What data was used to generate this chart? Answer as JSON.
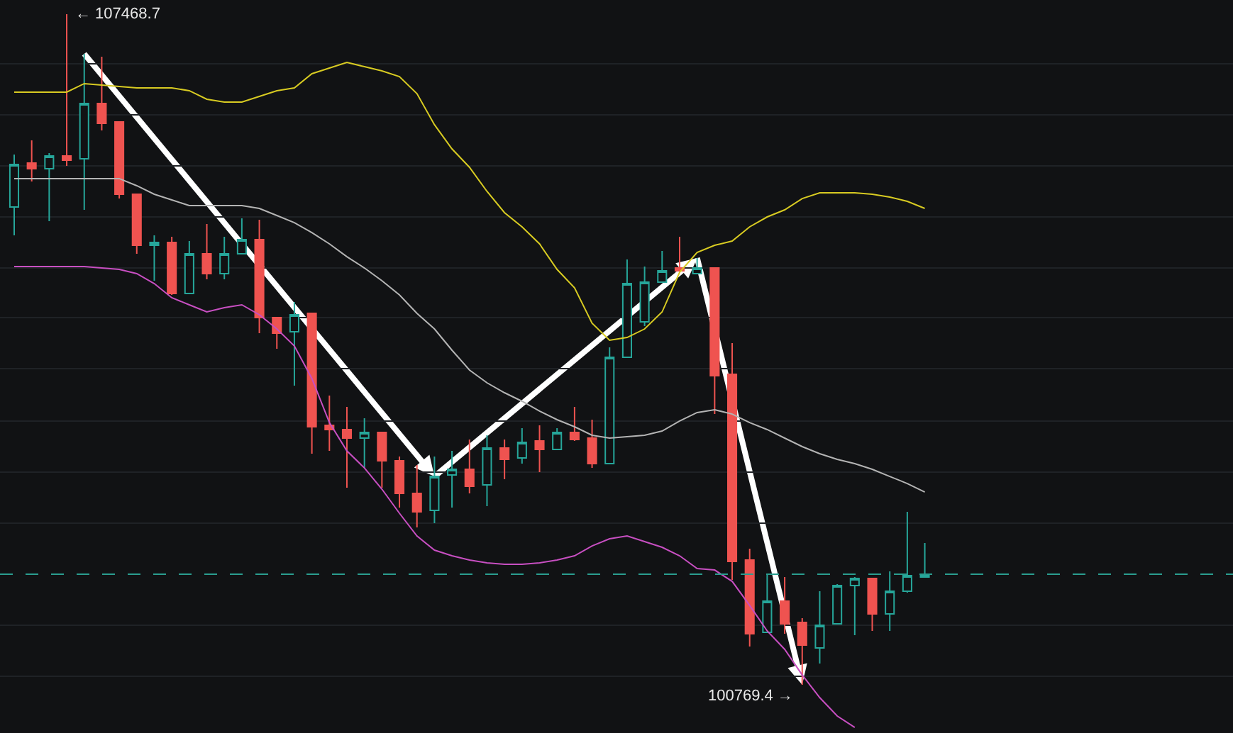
{
  "chart_data": {
    "type": "candlestick",
    "categories": [
      null,
      null,
      null,
      null,
      null,
      null,
      null,
      null,
      null,
      null,
      null,
      null,
      null,
      null,
      null,
      null,
      null,
      null,
      null,
      null,
      null,
      null,
      null,
      null,
      null,
      null,
      null,
      null,
      null,
      null,
      null,
      null,
      null,
      null,
      null,
      null,
      null,
      null,
      null,
      null,
      null,
      null,
      null,
      null,
      null,
      null,
      null,
      null,
      null,
      null,
      null,
      null,
      null
    ],
    "ohlc": [
      [
        105542,
        106066,
        105259,
        105967
      ],
      [
        105981,
        106208,
        105797,
        105925
      ],
      [
        105925,
        106081,
        105401,
        106052
      ],
      [
        106052,
        107468.7,
        105953,
        106010
      ],
      [
        106024,
        107072,
        105514,
        106576
      ],
      [
        106576,
        107044,
        106307,
        106378
      ],
      [
        106392,
        106392,
        105627,
        105670
      ],
      [
        105670,
        105670,
        105075,
        105160
      ],
      [
        105160,
        105259,
        104806,
        105188
      ],
      [
        105188,
        105245,
        104664,
        104678
      ],
      [
        104678,
        105202,
        104678,
        105075
      ],
      [
        105075,
        105372,
        104820,
        104877
      ],
      [
        104877,
        105245,
        104820,
        105075
      ],
      [
        105075,
        105429,
        105075,
        105217
      ],
      [
        105217,
        105415,
        104282,
        104437
      ],
      [
        104437,
        104437,
        104126,
        104282
      ],
      [
        104296,
        104593,
        103758,
        104466
      ],
      [
        104480,
        104480,
        103078,
        103347
      ],
      [
        103361,
        103659,
        103106,
        103319
      ],
      [
        103319,
        103545,
        102738,
        103234
      ],
      [
        103234,
        103432,
        102936,
        103290
      ],
      [
        103290,
        103290,
        102738,
        103007
      ],
      [
        103007,
        103049,
        102540,
        102681
      ],
      [
        102681,
        102965,
        102341,
        102497
      ],
      [
        102511,
        103049,
        102384,
        102851
      ],
      [
        102865,
        103106,
        102540,
        102922
      ],
      [
        102922,
        103219,
        102681,
        102752
      ],
      [
        102766,
        103262,
        102554,
        103135
      ],
      [
        103135,
        103219,
        102823,
        103021
      ],
      [
        103035,
        103333,
        102979,
        103191
      ],
      [
        103205,
        103361,
        102894,
        103120
      ],
      [
        103120,
        103333,
        103120,
        103290
      ],
      [
        103290,
        103545,
        103205,
        103219
      ],
      [
        103234,
        103418,
        102936,
        102979
      ],
      [
        102979,
        104140,
        102979,
        104041
      ],
      [
        104041,
        105018,
        104041,
        104777
      ],
      [
        104395,
        104947,
        104353,
        104792
      ],
      [
        104792,
        105103,
        104792,
        104905
      ],
      [
        104933,
        105245,
        104905,
        104905
      ],
      [
        104877,
        105032,
        104877,
        104933
      ],
      [
        104933,
        104933,
        103474,
        103857
      ],
      [
        103871,
        104183,
        101817,
        102001
      ],
      [
        102016,
        102129,
        101152,
        101279
      ],
      [
        101293,
        101874,
        101293,
        101605
      ],
      [
        101605,
        101846,
        101279,
        101378
      ],
      [
        101392,
        101435,
        100769.4,
        101166
      ],
      [
        101138,
        101704,
        100982,
        101364
      ],
      [
        101378,
        101775,
        101378,
        101761
      ],
      [
        101761,
        101846,
        101265,
        101832
      ],
      [
        101832,
        101832,
        101308,
        101477
      ],
      [
        101477,
        101902,
        101308,
        101704
      ],
      [
        101704,
        102497,
        101690,
        101860
      ],
      [
        101846,
        102186,
        101846,
        101874
      ]
    ],
    "series": [
      {
        "type": "line",
        "color": "#d8cb22",
        "values": [
          106690,
          106690,
          106690,
          106690,
          106775,
          106760,
          106746,
          106732,
          106732,
          106732,
          106704,
          106619,
          106590,
          106590,
          106647,
          106704,
          106732,
          106874,
          106930,
          106987,
          106944,
          106902,
          106845,
          106675,
          106364,
          106123,
          105939,
          105698,
          105486,
          105344,
          105174,
          104919,
          104735,
          104381,
          104211,
          104239,
          104324,
          104494,
          104891,
          105089,
          105160,
          105202,
          105344,
          105443,
          105514,
          105627,
          105684,
          105684,
          105684,
          105670,
          105641,
          105599,
          105528
        ]
      },
      {
        "type": "line",
        "color": "#b4b4b4",
        "values": [
          105826,
          105826,
          105826,
          105826,
          105826,
          105826,
          105826,
          105755,
          105670,
          105613,
          105556,
          105556,
          105556,
          105556,
          105528,
          105457,
          105386,
          105287,
          105174,
          105046,
          104933,
          104806,
          104664,
          104480,
          104324,
          104112,
          103914,
          103786,
          103687,
          103602,
          103503,
          103418,
          103347,
          103262,
          103234,
          103248,
          103262,
          103304,
          103404,
          103489,
          103517,
          103474,
          103389,
          103319,
          103234,
          103149,
          103078,
          103021,
          102979,
          102922,
          102851,
          102780,
          102695
        ]
      },
      {
        "type": "line",
        "color": "#c84fc2",
        "values": [
          104947,
          104947,
          104947,
          104947,
          104947,
          104933,
          104919,
          104877,
          104777,
          104636,
          104565,
          104494,
          104537,
          104565,
          104466,
          104324,
          104154,
          103829,
          103389,
          103106,
          102936,
          102724,
          102483,
          102256,
          102115,
          102058,
          102016,
          101987,
          101973,
          101973,
          101987,
          102016,
          102058,
          102157,
          102228,
          102256,
          102200,
          102143,
          102058,
          101931,
          101916,
          101803,
          101562,
          101308,
          101124,
          100868,
          100642,
          100458,
          100344,
          null,
          null,
          null,
          null
        ]
      }
    ],
    "ylim": [
      100288,
      107610
    ],
    "yticks": [
      {
        "value": 106973,
        "label": null
      },
      {
        "value": 106463,
        "label": null
      },
      {
        "value": 105953,
        "label": null
      },
      {
        "value": 105443,
        "label": null
      },
      {
        "value": 104933,
        "label": null
      },
      {
        "value": 104437,
        "label": null
      },
      {
        "value": 103928,
        "label": null
      },
      {
        "value": 103404,
        "label": null
      },
      {
        "value": 102894,
        "label": null
      },
      {
        "value": 102384,
        "label": null
      },
      {
        "value": 101364,
        "label": null
      },
      {
        "value": 100854,
        "label": null
      }
    ],
    "grid": "y",
    "ref_lines": [
      {
        "axis": "y",
        "value": 101874,
        "color": "#2a9d8f",
        "line_style": "dashed"
      }
    ],
    "annotations": [
      "← 107468.7",
      "100769.4 →"
    ]
  }
}
